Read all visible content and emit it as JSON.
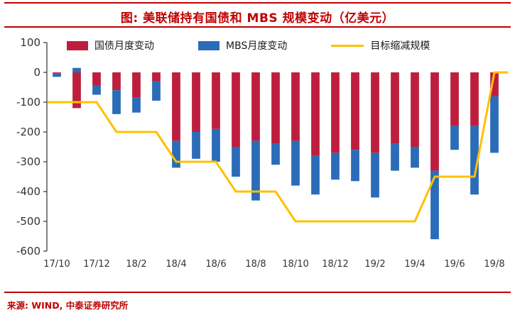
{
  "title": "图: 美联储持有国债和 MBS 规模变动（亿美元）",
  "source": "来源: WIND, 中泰证券研究所",
  "colors": {
    "accent_red": "#c00000",
    "bar_treasury": "#be1e3e",
    "bar_mbs": "#2b6cb8",
    "line_target": "#ffc000",
    "axis": "#404040",
    "tick_text": "#333333"
  },
  "legend": [
    {
      "label": "国债月度变动",
      "type": "bar",
      "color_key": "bar_treasury"
    },
    {
      "label": "MBS月度变动",
      "type": "bar",
      "color_key": "bar_mbs"
    },
    {
      "label": "目标缩减规模",
      "type": "line",
      "color_key": "line_target"
    }
  ],
  "chart_data": {
    "type": "bar",
    "stacked": true,
    "grid": false,
    "legend_position": "top",
    "categories": [
      "17/10",
      "17/11",
      "17/12",
      "18/1",
      "18/2",
      "18/3",
      "18/4",
      "18/5",
      "18/6",
      "18/7",
      "18/8",
      "18/9",
      "18/10",
      "18/11",
      "18/12",
      "19/1",
      "19/2",
      "19/3",
      "19/4",
      "19/5",
      "19/6",
      "19/7",
      "19/8"
    ],
    "series": [
      {
        "name": "国债月度变动",
        "kind": "bar",
        "values": [
          -3,
          -120,
          -45,
          -60,
          -85,
          -30,
          -230,
          -200,
          -190,
          -250,
          -230,
          -240,
          -230,
          -280,
          -270,
          -260,
          -270,
          -240,
          -250,
          -330,
          -180,
          -180,
          -80
        ]
      },
      {
        "name": "MBS月度变动",
        "kind": "bar",
        "values": [
          -12,
          15,
          -30,
          -80,
          -50,
          -65,
          -90,
          -90,
          -110,
          -100,
          -200,
          -70,
          -150,
          -130,
          -90,
          -105,
          -150,
          -90,
          -70,
          -230,
          -80,
          -230,
          -190
        ]
      },
      {
        "name": "目标缩减规模",
        "kind": "line",
        "values": [
          -100,
          -100,
          -100,
          -200,
          -200,
          -200,
          -300,
          -300,
          -300,
          -400,
          -400,
          -400,
          -500,
          -500,
          -500,
          -500,
          -500,
          -500,
          -500,
          -350,
          -350,
          -350,
          0
        ]
      }
    ],
    "ylim": [
      -600,
      100
    ],
    "y_ticks": [
      100,
      0,
      -100,
      -200,
      -300,
      -400,
      -500,
      -600
    ],
    "x_tick_labels": [
      "17/10",
      "17/12",
      "18/2",
      "18/4",
      "18/6",
      "18/8",
      "18/10",
      "18/12",
      "19/2",
      "19/4",
      "19/6",
      "19/8"
    ]
  }
}
